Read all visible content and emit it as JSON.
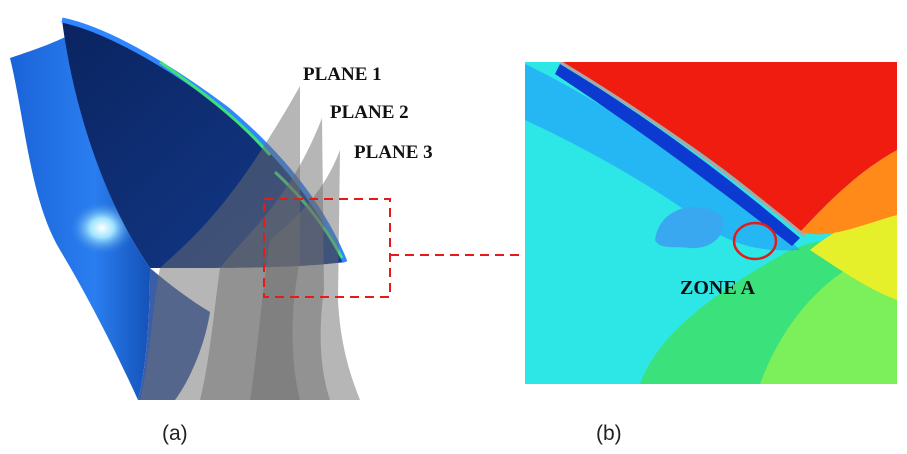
{
  "figure": {
    "planes": [
      {
        "label": "PLANE 1"
      },
      {
        "label": "PLANE 2"
      },
      {
        "label": "PLANE 3"
      }
    ],
    "zone_label": "ZONE A",
    "captions": {
      "a": "(a)",
      "b": "(b)"
    },
    "colors": {
      "blade_face": "#0b2a6e",
      "blade_edge": "#1f6fe0",
      "plane_gray": "#6e6e6e",
      "highlight": "#5cc6ff",
      "callout": "#e21b1b",
      "contour_low": "#1e90ff",
      "contour_mid": "#2de6e6",
      "contour_green": "#3be27b",
      "contour_yellow": "#e6f02a",
      "contour_orange": "#ff8a1a",
      "contour_high": "#f01c10"
    }
  }
}
